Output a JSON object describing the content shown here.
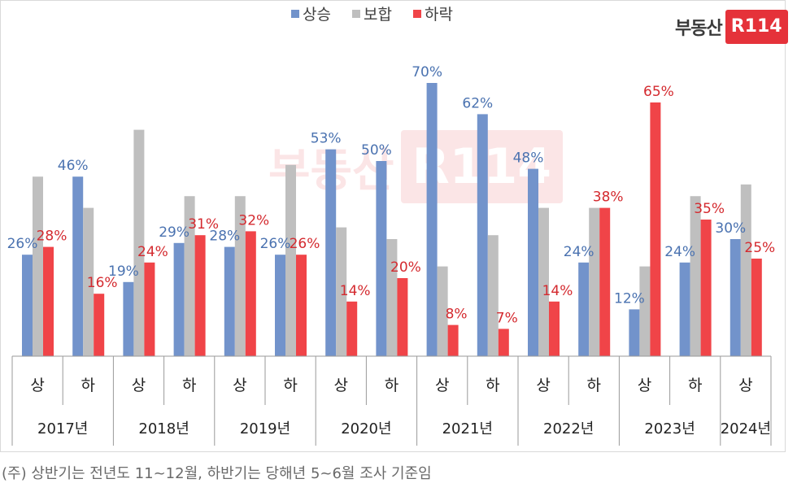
{
  "chart_data": {
    "type": "bar",
    "title": "",
    "xlabel": "",
    "ylabel": "",
    "ylim": [
      0,
      80
    ],
    "grid": false,
    "legend_position": "top-center",
    "categories": [
      "상",
      "하",
      "상",
      "하",
      "상",
      "하",
      "상",
      "하",
      "상",
      "하",
      "상",
      "하",
      "상",
      "하",
      "상"
    ],
    "year_groups": [
      "2017년",
      "2018년",
      "2019년",
      "2020년",
      "2021년",
      "2022년",
      "2023년",
      "2024년"
    ],
    "series": [
      {
        "name": "상승",
        "color": "#7293cb",
        "label_color": "#4a72b0",
        "values": [
          26,
          46,
          19,
          29,
          28,
          26,
          53,
          50,
          70,
          62,
          48,
          24,
          12,
          24,
          30
        ]
      },
      {
        "name": "보합",
        "color": "#bfbfbf",
        "label_color": "",
        "values": [
          46,
          38,
          58,
          41,
          41,
          49,
          33,
          30,
          23,
          31,
          38,
          38,
          23,
          41,
          44
        ]
      },
      {
        "name": "하락",
        "color": "#f04448",
        "label_color": "#d42a2f",
        "values": [
          28,
          16,
          24,
          31,
          32,
          26,
          14,
          20,
          8,
          7,
          14,
          38,
          65,
          35,
          25
        ]
      }
    ],
    "data_labels": {
      "상승": [
        "26%",
        "46%",
        "19%",
        "29%",
        "28%",
        "26%",
        "53%",
        "50%",
        "70%",
        "62%",
        "48%",
        "24%",
        "12%",
        "24%",
        "30%"
      ],
      "하락": [
        "28%",
        "16%",
        "24%",
        "31%",
        "32%",
        "26%",
        "14%",
        "20%",
        "8%",
        "7%",
        "14%",
        "38%",
        "65%",
        "35%",
        "25%"
      ]
    }
  },
  "logo": {
    "text": "부동산",
    "mark": "R114"
  },
  "watermark": {
    "text": "부동산",
    "mark": "R114"
  },
  "note": "(주) 상반기는 전년도 11~12월, 하반기는 당해년 5~6월 조사 기준임"
}
